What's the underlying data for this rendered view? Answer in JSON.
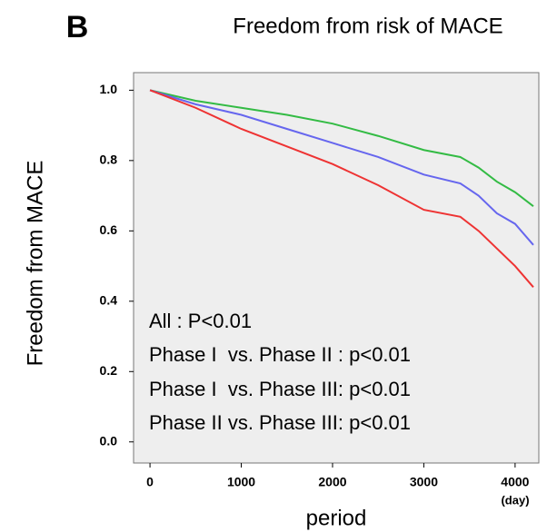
{
  "chart_data": {
    "type": "line",
    "panel_label": "B",
    "title": "Freedom from risk of MACE",
    "y_label": "Freedom from MACE",
    "x_label": "period",
    "x_unit": "(day)",
    "x": [
      0,
      500,
      1000,
      1500,
      2000,
      2500,
      3000,
      3400,
      3600,
      3800,
      4000,
      4200
    ],
    "series": [
      {
        "color": "#33bb44",
        "values": [
          1.0,
          0.97,
          0.95,
          0.93,
          0.905,
          0.87,
          0.83,
          0.81,
          0.78,
          0.74,
          0.71,
          0.67
        ]
      },
      {
        "color": "#6666ee",
        "values": [
          1.0,
          0.96,
          0.93,
          0.89,
          0.85,
          0.81,
          0.76,
          0.735,
          0.7,
          0.65,
          0.62,
          0.56
        ]
      },
      {
        "color": "#ee3333",
        "values": [
          1.0,
          0.95,
          0.89,
          0.84,
          0.79,
          0.73,
          0.66,
          0.64,
          0.6,
          0.55,
          0.5,
          0.44
        ]
      }
    ],
    "xlim": [
      -180,
      4260
    ],
    "ylim": [
      -0.06,
      1.05
    ],
    "xticks": [
      0,
      1000,
      2000,
      3000,
      4000
    ],
    "yticks": [
      {
        "value": 0,
        "label": "0.0"
      },
      0.2,
      0.4,
      0.6,
      0.8,
      {
        "value": 1,
        "label": "1.0"
      }
    ],
    "background": "#eeeeee",
    "annotations": [
      "All : P<0.01",
      "Phase I  vs. Phase II : p<0.01",
      "Phase I  vs. Phase III: p<0.01",
      "Phase II vs. Phase III: p<0.01"
    ]
  }
}
